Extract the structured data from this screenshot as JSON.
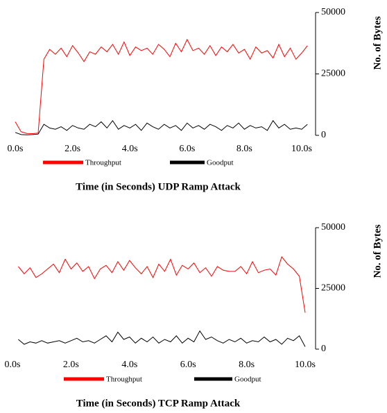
{
  "chart_data": [
    {
      "type": "line",
      "xlabel": "Time (in Seconds) UDP Ramp Attack",
      "ylabel": "No. of Bytes",
      "x": [
        0,
        0.2,
        0.4,
        0.6,
        0.8,
        1,
        1.2,
        1.4,
        1.6,
        1.8,
        2,
        2.2,
        2.4,
        2.6,
        2.8,
        3,
        3.2,
        3.4,
        3.6,
        3.8,
        4,
        4.2,
        4.4,
        4.6,
        4.8,
        5,
        5.2,
        5.4,
        5.6,
        5.8,
        6,
        6.2,
        6.4,
        6.6,
        6.8,
        7,
        7.2,
        7.4,
        7.6,
        7.8,
        8,
        8.2,
        8.4,
        8.6,
        8.8,
        9,
        9.2,
        9.4,
        9.6,
        9.8,
        10,
        10.2
      ],
      "series": [
        {
          "name": "Throughput",
          "color": "#ff0000",
          "values": [
            5500,
            1500,
            800,
            700,
            900,
            31000,
            35000,
            33000,
            35500,
            32000,
            36500,
            33500,
            30000,
            34000,
            33000,
            36000,
            34000,
            37000,
            33000,
            38000,
            32500,
            36000,
            34500,
            35500,
            33000,
            37000,
            35000,
            32000,
            37500,
            34000,
            39000,
            34500,
            35500,
            33000,
            36500,
            32500,
            36000,
            34000,
            37000,
            33500,
            35000,
            31000,
            36000,
            33500,
            34500,
            31500,
            37000,
            32000,
            35500,
            31000,
            33500,
            36500
          ]
        },
        {
          "name": "Goodput",
          "color": "#000000",
          "values": [
            1200,
            300,
            200,
            300,
            500,
            4500,
            3000,
            2500,
            3500,
            2000,
            4000,
            3000,
            2500,
            4500,
            3500,
            5500,
            3000,
            6000,
            2500,
            4000,
            3000,
            4500,
            2000,
            5000,
            3500,
            2500,
            4500,
            3000,
            4000,
            2000,
            5000,
            3000,
            4000,
            2500,
            4500,
            3500,
            2000,
            4000,
            3000,
            5000,
            2500,
            4000,
            3000,
            3500,
            2000,
            6000,
            3000,
            4500,
            2500,
            3000,
            2500,
            4500
          ]
        }
      ],
      "xlim": [
        0,
        10.5
      ],
      "xticks": [
        {
          "value": 0,
          "label": "0.0s"
        },
        {
          "value": 2,
          "label": "2.0s"
        },
        {
          "value": 4,
          "label": "4.0s"
        },
        {
          "value": 6,
          "label": "6.0s"
        },
        {
          "value": 8,
          "label": "8.0s"
        },
        {
          "value": 10,
          "label": "10.0s"
        }
      ],
      "ylim": [
        0,
        50000
      ],
      "yticks": [
        0,
        25000,
        50000
      ]
    },
    {
      "type": "line",
      "xlabel": "Time (in Seconds) TCP Ramp Attack",
      "ylabel": "No. of Bytes",
      "x": [
        0.2,
        0.4,
        0.6,
        0.8,
        1,
        1.2,
        1.4,
        1.6,
        1.8,
        2,
        2.2,
        2.4,
        2.6,
        2.8,
        3,
        3.2,
        3.4,
        3.6,
        3.8,
        4,
        4.2,
        4.4,
        4.6,
        4.8,
        5,
        5.2,
        5.4,
        5.6,
        5.8,
        6,
        6.2,
        6.4,
        6.6,
        6.8,
        7,
        7.2,
        7.4,
        7.6,
        7.8,
        8,
        8.2,
        8.4,
        8.6,
        8.8,
        9,
        9.2,
        9.4,
        9.6,
        9.8,
        10
      ],
      "series": [
        {
          "name": "Throughput",
          "color": "#ff0000",
          "values": [
            34000,
            31000,
            33500,
            29500,
            31000,
            33000,
            35000,
            31500,
            37000,
            33000,
            35500,
            32000,
            34000,
            29000,
            33000,
            34500,
            31500,
            36000,
            32500,
            36500,
            33500,
            31000,
            34000,
            29500,
            35000,
            32000,
            37000,
            30500,
            34500,
            33000,
            35500,
            31500,
            33500,
            30000,
            34000,
            32500,
            32000,
            32000,
            34000,
            31000,
            36000,
            31500,
            32500,
            33000,
            30500,
            38000,
            35000,
            33000,
            30000,
            15000
          ]
        },
        {
          "name": "Goodput",
          "color": "#000000",
          "values": [
            4000,
            2000,
            3000,
            2500,
            3500,
            2500,
            3000,
            3500,
            2500,
            3500,
            4500,
            3000,
            3500,
            2500,
            4000,
            5500,
            3000,
            7000,
            4000,
            5000,
            2500,
            4500,
            3000,
            5000,
            2500,
            4000,
            3000,
            5500,
            2500,
            4500,
            3000,
            7500,
            4000,
            5000,
            3500,
            2500,
            4000,
            3000,
            4500,
            2500,
            3500,
            3000,
            5000,
            3000,
            4000,
            2000,
            4500,
            3500,
            5500,
            1000
          ]
        }
      ],
      "xlim": [
        0,
        10.35
      ],
      "xticks": [
        {
          "value": 0,
          "label": "0.0s"
        },
        {
          "value": 2,
          "label": "2.0s"
        },
        {
          "value": 4,
          "label": "4.0s"
        },
        {
          "value": 6,
          "label": "6.0s"
        },
        {
          "value": 8,
          "label": "8.0s"
        },
        {
          "value": 10,
          "label": "10.0s"
        }
      ],
      "ylim": [
        0,
        50000
      ],
      "yticks": [
        0,
        25000,
        50000
      ]
    }
  ]
}
